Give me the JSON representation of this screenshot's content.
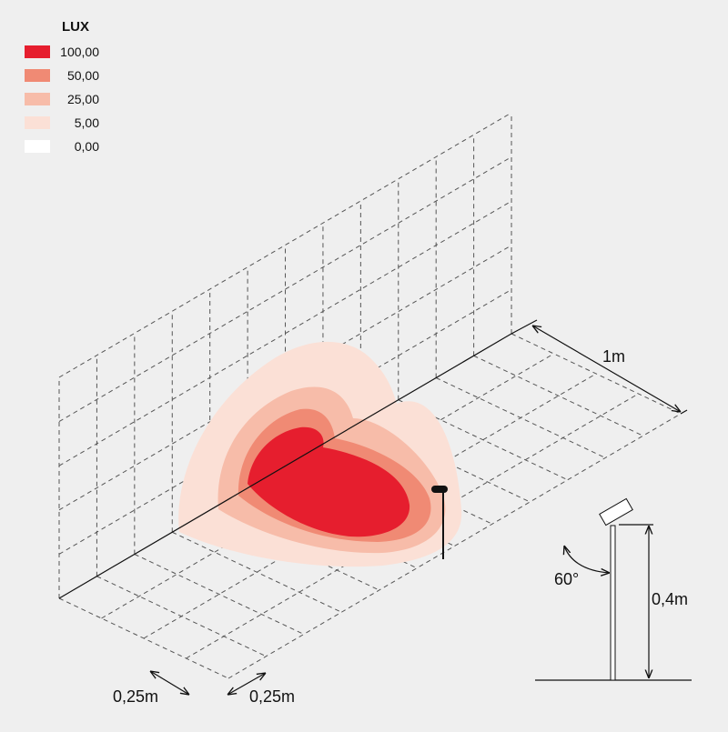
{
  "legend": {
    "title": "LUX",
    "items": [
      {
        "label": "100,00",
        "color": "#e61e2e"
      },
      {
        "label": "50,00",
        "color": "#f08a74"
      },
      {
        "label": "25,00",
        "color": "#f7bca9"
      },
      {
        "label": "5,00",
        "color": "#fbe0d6"
      },
      {
        "label": "0,00",
        "color": "#ffffff"
      }
    ]
  },
  "dimensions": {
    "depth": "1m",
    "cell_left": "0,25m",
    "cell_right": "0,25m",
    "height": "0,4m",
    "angle": "60°"
  }
}
